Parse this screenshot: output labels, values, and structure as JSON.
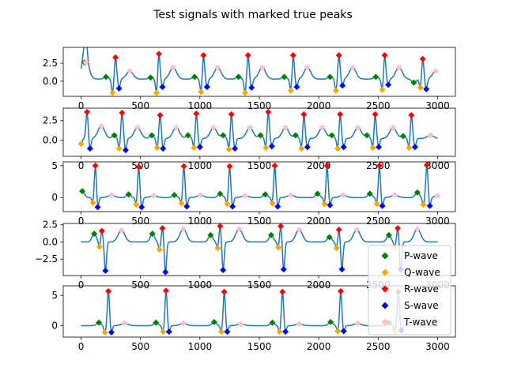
{
  "figure": {
    "title": "Test signals with marked true peaks"
  },
  "colors": {
    "signal": "#1f77b4",
    "P-wave": "#008000",
    "Q-wave": "#ffa500",
    "R-wave": "#ff0000",
    "S-wave": "#0000ff",
    "T-wave": "#ffc0cb"
  },
  "chart_data": [
    {
      "type": "line",
      "title": "",
      "xlim": [
        -150,
        3150
      ],
      "ylim": [
        -2.1,
        4.7
      ],
      "x_ticks": [
        0,
        500,
        1000,
        1500,
        2000,
        2500,
        3000
      ],
      "x_tick_labels": [
        "0",
        "500",
        "1000",
        "1500",
        "2000",
        "2500",
        "3000"
      ],
      "y_ticks": [
        0,
        2.5
      ],
      "y_tick_labels": [
        "0.0",
        "2.5"
      ],
      "baseline": 0.3,
      "beats": [
        {
          "P": [
            30,
            2.6
          ],
          "R": [
            40,
            2.6
          ],
          "T": [
            40,
            2.6
          ]
        },
        {
          "P": [
            210,
            0.6
          ],
          "Q": [
            265,
            -1.6
          ],
          "R": [
            290,
            3.3
          ],
          "S": [
            320,
            -1.0
          ],
          "T": [
            410,
            1.4
          ]
        },
        {
          "P": [
            585,
            0.5
          ],
          "Q": [
            635,
            -1.6
          ],
          "R": [
            655,
            3.8
          ],
          "S": [
            685,
            -0.8
          ],
          "T": [
            775,
            1.9
          ]
        },
        {
          "P": [
            955,
            0.6
          ],
          "Q": [
            1010,
            -1.5
          ],
          "R": [
            1030,
            3.6
          ],
          "S": [
            1060,
            -0.8
          ],
          "T": [
            1150,
            1.9
          ]
        },
        {
          "P": [
            1325,
            0.6
          ],
          "Q": [
            1380,
            -1.6
          ],
          "R": [
            1405,
            3.6
          ],
          "S": [
            1435,
            -0.9
          ],
          "T": [
            1525,
            1.9
          ]
        },
        {
          "P": [
            1710,
            0.6
          ],
          "Q": [
            1765,
            -1.3
          ],
          "R": [
            1785,
            3.6
          ],
          "S": [
            1815,
            -0.8
          ],
          "T": [
            1905,
            1.9
          ]
        },
        {
          "P": [
            2095,
            0.6
          ],
          "Q": [
            2145,
            -1.3
          ],
          "R": [
            2170,
            3.6
          ],
          "S": [
            2200,
            -0.6
          ],
          "T": [
            2285,
            1.9
          ]
        },
        {
          "P": [
            2480,
            0.6
          ],
          "Q": [
            2535,
            -1.2
          ],
          "R": [
            2555,
            3.6
          ],
          "S": [
            2585,
            -0.5
          ],
          "T": [
            2675,
            1.9
          ]
        },
        {
          "P": [
            2800,
            -0.2
          ],
          "Q": [
            2855,
            -0.9
          ],
          "R": [
            2875,
            3.1
          ],
          "S": [
            2905,
            -1.1
          ],
          "T": [
            2985,
            1.4
          ]
        }
      ]
    },
    {
      "type": "line",
      "title": "",
      "xlim": [
        -150,
        3150
      ],
      "ylim": [
        -2.1,
        4.1
      ],
      "x_ticks": [
        0,
        500,
        1000,
        1500,
        2000,
        2500,
        3000
      ],
      "x_tick_labels": [
        "0",
        "500",
        "1000",
        "1500",
        "2000",
        "2500",
        "3000"
      ],
      "y_ticks": [
        0,
        2.5
      ],
      "y_tick_labels": [
        "0.0",
        "2.5"
      ],
      "baseline": 0.2,
      "beats": [
        {
          "Q": [
            0,
            -0.5
          ],
          "R": [
            50,
            3.6
          ],
          "S": [
            75,
            -1.1
          ]
        },
        {
          "P": [
            280,
            0.6
          ],
          "Q": [
            320,
            -1.1
          ],
          "R": [
            345,
            3.5
          ],
          "S": [
            375,
            -1.3
          ],
          "T": [
            170,
            1.8
          ]
        },
        {
          "P": [
            595,
            0.6
          ],
          "Q": [
            640,
            -1.0
          ],
          "R": [
            665,
            3.2
          ],
          "S": [
            690,
            -1.1
          ],
          "T": [
            475,
            1.6
          ]
        },
        {
          "P": [
            900,
            0.6
          ],
          "Q": [
            950,
            -1.0
          ],
          "R": [
            970,
            3.4
          ],
          "S": [
            1000,
            -0.9
          ],
          "T": [
            800,
            1.6
          ]
        },
        {
          "P": [
            1195,
            0.6
          ],
          "Q": [
            1245,
            -1.2
          ],
          "R": [
            1265,
            3.3
          ],
          "S": [
            1295,
            -1.1
          ],
          "T": [
            1115,
            1.6
          ]
        },
        {
          "P": [
            1510,
            0.6
          ],
          "Q": [
            1555,
            -1.0
          ],
          "R": [
            1575,
            3.6
          ],
          "S": [
            1605,
            -0.8
          ],
          "T": [
            1420,
            1.6
          ]
        },
        {
          "P": [
            1805,
            0.6
          ],
          "Q": [
            1855,
            -1.1
          ],
          "R": [
            1875,
            3.3
          ],
          "S": [
            1905,
            -0.9
          ],
          "T": [
            1720,
            1.6
          ]
        },
        {
          "P": [
            2110,
            0.6
          ],
          "Q": [
            2160,
            -1.1
          ],
          "R": [
            2180,
            3.3
          ],
          "S": [
            2210,
            -0.9
          ],
          "T": [
            2030,
            1.6
          ]
        },
        {
          "P": [
            2405,
            0.6
          ],
          "Q": [
            2455,
            -1.0
          ],
          "R": [
            2475,
            3.3
          ],
          "S": [
            2505,
            -0.9
          ],
          "T": [
            2330,
            1.6
          ]
        },
        {
          "P": [
            2710,
            0.5
          ],
          "Q": [
            2760,
            -1.0
          ],
          "R": [
            2780,
            3.2
          ],
          "S": [
            2810,
            -0.9
          ],
          "T": [
            2625,
            1.6
          ]
        },
        {
          "T": [
            2940,
            0.6
          ]
        }
      ]
    },
    {
      "type": "line",
      "title": "",
      "xlim": [
        -150,
        3150
      ],
      "ylim": [
        -2.2,
        5.6
      ],
      "x_ticks": [
        0,
        500,
        1000,
        1500,
        2000,
        2500,
        3000
      ],
      "x_tick_labels": [
        "0",
        "500",
        "1000",
        "1500",
        "2000",
        "2500",
        "3000"
      ],
      "y_ticks": [
        0,
        5
      ],
      "y_tick_labels": [
        "0",
        "5"
      ],
      "baseline": 0.0,
      "beats": [
        {
          "P": [
            10,
            1.0
          ],
          "Q": [
            100,
            -0.8
          ],
          "R": [
            120,
            5.0
          ],
          "S": [
            140,
            -1.5
          ],
          "T": [
            255,
            0.4
          ]
        },
        {
          "P": [
            400,
            0.5
          ],
          "Q": [
            465,
            -1.1
          ],
          "R": [
            485,
            4.8
          ],
          "S": [
            510,
            -1.5
          ],
          "T": [
            610,
            0.3
          ]
        },
        {
          "P": [
            785,
            0.4
          ],
          "Q": [
            845,
            -0.9
          ],
          "R": [
            865,
            4.9
          ],
          "S": [
            890,
            -1.4
          ],
          "T": [
            1005,
            0.4
          ]
        },
        {
          "P": [
            1170,
            0.6
          ],
          "Q": [
            1230,
            -1.0
          ],
          "R": [
            1250,
            4.9
          ],
          "S": [
            1275,
            -1.4
          ],
          "T": [
            1380,
            0.3
          ]
        },
        {
          "P": [
            1550,
            0.5
          ],
          "Q": [
            1610,
            -0.9
          ],
          "R": [
            1630,
            5.0
          ],
          "S": [
            1655,
            -1.4
          ],
          "T": [
            1765,
            0.4
          ]
        },
        {
          "P": [
            1990,
            0.6
          ],
          "Q": [
            2050,
            -1.0
          ],
          "R": [
            2070,
            5.0
          ],
          "S": [
            2095,
            -1.2
          ],
          "T": [
            2205,
            0.4
          ]
        },
        {
          "P": [
            2430,
            0.6
          ],
          "Q": [
            2490,
            -1.0
          ],
          "R": [
            2510,
            5.0
          ],
          "S": [
            2535,
            -1.3
          ],
          "T": [
            2640,
            0.4
          ]
        },
        {
          "P": [
            2830,
            0.8
          ],
          "Q": [
            2880,
            -1.1
          ],
          "R": [
            2910,
            5.1
          ],
          "S": [
            2935,
            -1.3
          ],
          "T": [
            3000,
            0.3
          ]
        }
      ]
    },
    {
      "type": "line",
      "title": "",
      "xlim": [
        -150,
        3150
      ],
      "ylim": [
        -4.9,
        2.7
      ],
      "x_ticks": [
        0,
        500,
        1000,
        1500,
        2000,
        2500,
        3000
      ],
      "x_tick_labels": [
        "0",
        "500",
        "1000",
        "1500",
        "2000",
        "2500",
        "3000"
      ],
      "y_ticks": [
        -2.5,
        0,
        2.5
      ],
      "y_tick_labels": [
        "−2.5",
        "0.0",
        "2.5"
      ],
      "baseline": 0.0,
      "beats": [
        {
          "P": [
            110,
            1.2
          ],
          "Q": [
            155,
            -0.7
          ],
          "R": [
            175,
            1.6
          ],
          "S": [
            205,
            -4.2
          ],
          "T": [
            340,
            1.7
          ]
        },
        {
          "P": [
            600,
            1.2
          ],
          "Q": [
            660,
            -1.1
          ],
          "R": [
            685,
            2.0
          ],
          "S": [
            710,
            -4.4
          ],
          "T": [
            860,
            1.9
          ]
        },
        {
          "P": [
            1090,
            1.0
          ],
          "Q": [
            1150,
            -0.9
          ],
          "R": [
            1170,
            2.3
          ],
          "S": [
            1195,
            -4.1
          ],
          "T": [
            1330,
            1.9
          ]
        },
        {
          "P": [
            1600,
            1.0
          ],
          "Q": [
            1660,
            -0.8
          ],
          "R": [
            1680,
            2.3
          ],
          "S": [
            1705,
            -4.0
          ],
          "T": [
            1835,
            1.8
          ]
        },
        {
          "P": [
            2090,
            0.7
          ],
          "Q": [
            2150,
            -0.9
          ],
          "R": [
            2170,
            1.8
          ],
          "S": [
            2195,
            -4.0
          ],
          "T": [
            2320,
            1.8
          ]
        },
        {
          "P": [
            2590,
            1.0
          ],
          "Q": [
            2640,
            -0.7
          ],
          "R": [
            2665,
            2.0
          ],
          "S": [
            2690,
            -4.0
          ],
          "T": [
            2830,
            1.9
          ]
        }
      ]
    },
    {
      "type": "line",
      "title": "",
      "xlim": [
        -150,
        3150
      ],
      "ylim": [
        -1.9,
        6.6
      ],
      "x_ticks": [
        0,
        500,
        1000,
        1500,
        2000,
        2500,
        3000
      ],
      "x_tick_labels": [
        "0",
        "500",
        "1000",
        "1500",
        "2000",
        "2500",
        "3000"
      ],
      "y_ticks": [
        0,
        5
      ],
      "y_tick_labels": [
        "0",
        "5"
      ],
      "baseline": 0.0,
      "beats": [
        {
          "P": [
            150,
            0.5
          ],
          "Q": [
            200,
            -1.1
          ],
          "R": [
            230,
            5.7
          ],
          "S": [
            255,
            -1.1
          ],
          "T": [
            365,
            0.4
          ]
        },
        {
          "P": [
            630,
            0.5
          ],
          "Q": [
            690,
            -1.0
          ],
          "R": [
            715,
            5.8
          ],
          "S": [
            740,
            -1.0
          ],
          "T": [
            860,
            0.4
          ]
        },
        {
          "P": [
            1120,
            0.6
          ],
          "Q": [
            1180,
            -1.0
          ],
          "R": [
            1205,
            5.6
          ],
          "S": [
            1230,
            -1.0
          ],
          "T": [
            1345,
            0.3
          ]
        },
        {
          "P": [
            1610,
            0.5
          ],
          "Q": [
            1670,
            -1.0
          ],
          "R": [
            1695,
            5.6
          ],
          "S": [
            1720,
            -1.0
          ],
          "T": [
            1835,
            0.3
          ]
        },
        {
          "P": [
            2100,
            0.6
          ],
          "Q": [
            2160,
            -0.9
          ],
          "R": [
            2185,
            5.7
          ],
          "S": [
            2210,
            -0.9
          ],
          "T": [
            2325,
            0.4
          ]
        },
        {
          "P": [
            2590,
            0.5
          ],
          "Q": [
            2640,
            -0.9
          ],
          "R": [
            2670,
            5.6
          ],
          "S": [
            2695,
            -0.8
          ],
          "T": [
            2810,
            0.4
          ]
        }
      ]
    }
  ],
  "legend": {
    "placement": "lower-right",
    "entries": [
      "P-wave",
      "Q-wave",
      "R-wave",
      "S-wave",
      "T-wave"
    ]
  }
}
